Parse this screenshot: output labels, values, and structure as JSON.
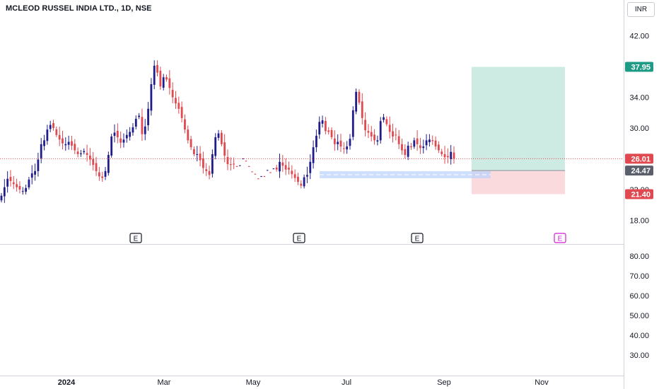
{
  "header": {
    "title": "MCLEOD RUSSEL INDIA LTD., 1D, NSE",
    "currency": "INR"
  },
  "colors": {
    "up": "#1f1c8c",
    "down": "#e0494f",
    "target_zone": "#cdebe3",
    "stop_zone": "#fbdadd",
    "entry_highlight": "#bcd4fb",
    "last_price_line": "#e0494f",
    "target_badge": "#1d9b84",
    "entry_badge": "#5a5f6b",
    "stop_badge": "#e0494f",
    "earnings_future": "#d21ed2"
  },
  "chart_data": {
    "type": "candlestick",
    "title": "MCLEOD RUSSEL INDIA LTD., 1D, NSE",
    "price_axis": {
      "ticks": [
        "42.00",
        "34.00",
        "30.00",
        "22.00",
        "18.00"
      ],
      "ylim": [
        16.8,
        45.2
      ]
    },
    "x_axis": {
      "labels": [
        "2024",
        "Mar",
        "May",
        "Jul",
        "Sep",
        "Nov"
      ]
    },
    "price_levels": {
      "last": "26.01",
      "target": "37.95",
      "entry": "24.47",
      "stop": "21.40"
    },
    "earnings_markers": [
      "E",
      "E",
      "E",
      "E"
    ],
    "indicator_axis": {
      "ticks": [
        "80.00",
        "70.00",
        "60.00",
        "50.00",
        "40.00",
        "30.00"
      ]
    },
    "closes": [
      21.2,
      22.3,
      23.4,
      23.1,
      22.7,
      22.3,
      22.0,
      21.8,
      22.2,
      23.3,
      24.1,
      24.4,
      25.9,
      27.9,
      28.4,
      29.8,
      30.4,
      30.0,
      29.1,
      28.5,
      28.0,
      27.9,
      28.2,
      27.7,
      27.1,
      26.6,
      26.7,
      27.0,
      26.5,
      25.9,
      25.2,
      24.4,
      23.7,
      23.5,
      24.4,
      26.5,
      28.9,
      29.4,
      28.8,
      28.1,
      28.5,
      29.1,
      29.5,
      30.1,
      31.2,
      31.6,
      29.2,
      30.2,
      32.5,
      35.7,
      38.1,
      37.2,
      35.4,
      36.6,
      36.3,
      35.2,
      34.0,
      33.2,
      32.5,
      31.3,
      29.8,
      28.4,
      27.5,
      26.6,
      26.6,
      25.8,
      24.8,
      24.4,
      23.9,
      26.6,
      28.8,
      29.3,
      27.9,
      26.4,
      25.3,
      25.2,
      25.3,
      25.0,
      25.1,
      26.0,
      25.7,
      25.0,
      24.3,
      24.0,
      23.4,
      23.7,
      23.7,
      24.5,
      24.2,
      24.7,
      24.6,
      25.6,
      25.1,
      24.6,
      24.6,
      24.0,
      23.5,
      23.0,
      22.5,
      23.6,
      23.9,
      25.6,
      27.5,
      29.0,
      30.8,
      31.0,
      29.6,
      29.5,
      28.8,
      27.9,
      28.2,
      27.6,
      27.3,
      27.6,
      28.6,
      32.3,
      34.7,
      33.3,
      31.3,
      29.7,
      29.4,
      28.9,
      28.4,
      28.4,
      30.9,
      31.4,
      30.5,
      29.5,
      28.9,
      29.1,
      27.9,
      27.1,
      26.5,
      27.7,
      27.5,
      28.4,
      27.9,
      27.4,
      27.6,
      28.4,
      28.5,
      28.3,
      27.6,
      27.1,
      26.6,
      26.2,
      26.2,
      26.9,
      26.01
    ]
  }
}
